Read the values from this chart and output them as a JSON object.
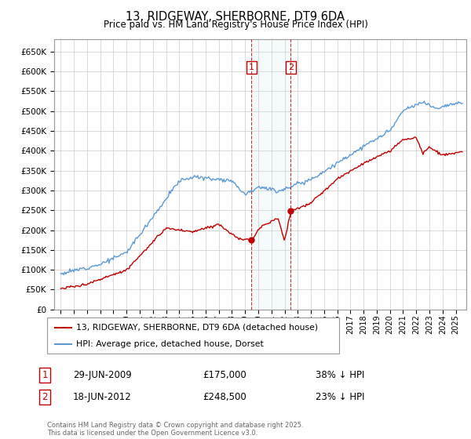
{
  "title": "13, RIDGEWAY, SHERBORNE, DT9 6DA",
  "subtitle": "Price paid vs. HM Land Registry's House Price Index (HPI)",
  "ylabel_ticks": [
    "£0",
    "£50K",
    "£100K",
    "£150K",
    "£200K",
    "£250K",
    "£300K",
    "£350K",
    "£400K",
    "£450K",
    "£500K",
    "£550K",
    "£600K",
    "£650K"
  ],
  "ytick_values": [
    0,
    50000,
    100000,
    150000,
    200000,
    250000,
    300000,
    350000,
    400000,
    450000,
    500000,
    550000,
    600000,
    650000
  ],
  "ylim": [
    0,
    680000
  ],
  "xlim_start": 1994.5,
  "xlim_end": 2025.8,
  "xticks": [
    1995,
    1996,
    1997,
    1998,
    1999,
    2000,
    2001,
    2002,
    2003,
    2004,
    2005,
    2006,
    2007,
    2008,
    2009,
    2010,
    2011,
    2012,
    2013,
    2014,
    2015,
    2016,
    2017,
    2018,
    2019,
    2020,
    2021,
    2022,
    2023,
    2024,
    2025
  ],
  "hpi_color": "#5b9bd5",
  "price_color": "#c00000",
  "purchase1_date": 2009.49,
  "purchase1_price": 175000,
  "purchase1_label": "1",
  "purchase2_date": 2012.46,
  "purchase2_price": 248500,
  "purchase2_label": "2",
  "legend_property": "13, RIDGEWAY, SHERBORNE, DT9 6DA (detached house)",
  "legend_hpi": "HPI: Average price, detached house, Dorset",
  "footnote": "Contains HM Land Registry data © Crown copyright and database right 2025.\nThis data is licensed under the Open Government Licence v3.0.",
  "table_row1": [
    "1",
    "29-JUN-2009",
    "£175,000",
    "38% ↓ HPI"
  ],
  "table_row2": [
    "2",
    "18-JUN-2012",
    "£248,500",
    "23% ↓ HPI"
  ],
  "background_color": "#ffffff",
  "grid_color": "#cccccc"
}
